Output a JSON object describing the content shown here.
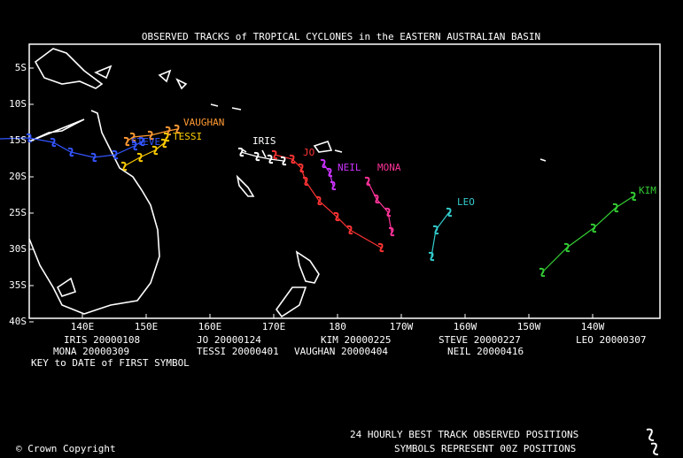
{
  "title": "OBSERVED TRACKS of TROPICAL CYCLONES in the EASTERN AUSTRALIAN BASIN",
  "x_axis_labels": [
    "140E",
    "150E",
    "160E",
    "170E",
    "180",
    "170W",
    "160W",
    "150W",
    "140W"
  ],
  "y_axis_labels": [
    "5S",
    "10S",
    "15S",
    "20S",
    "25S",
    "30S",
    "35S",
    "40S"
  ],
  "storms": [
    {
      "name": "STEVE",
      "color": "#3355ff"
    },
    {
      "name": "VAUGHAN",
      "color": "#ff9933"
    },
    {
      "name": "TESSI",
      "color": "#ffcc00"
    },
    {
      "name": "IRIS",
      "color": "#ffffff"
    },
    {
      "name": "JO",
      "color": "#ff3333"
    },
    {
      "name": "NEIL",
      "color": "#cc33ff"
    },
    {
      "name": "MONA",
      "color": "#ff3399"
    },
    {
      "name": "LEO",
      "color": "#33cccc"
    },
    {
      "name": "KIM",
      "color": "#33cc33"
    }
  ],
  "key": [
    "IRIS 20000108",
    "JO 20000124",
    "KIM 20000225",
    "STEVE 20000227",
    "LEO 20000307",
    "MONA 20000309",
    "TESSI 20000401",
    "VAUGHAN 20000404",
    "NEIL 20000416"
  ],
  "key_note": "KEY to DATE of FIRST SYMBOL",
  "footer_line_1": "24 HOURLY BEST TRACK OBSERVED POSITIONS",
  "footer_line_2": "SYMBOLS REPRESENT 00Z POSITIONS",
  "copyright": "© Crown Copyright"
}
